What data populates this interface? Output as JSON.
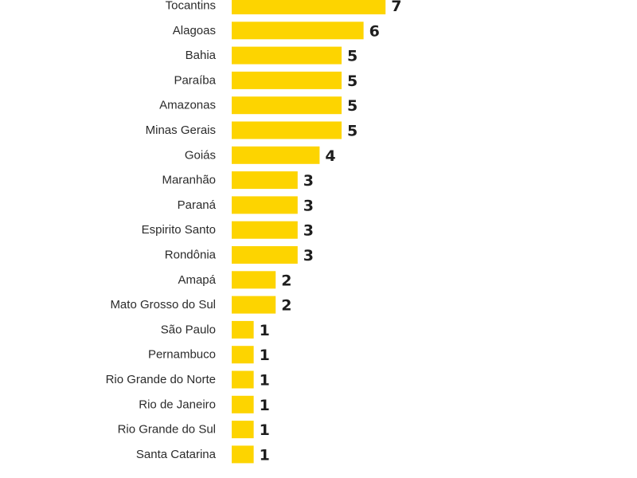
{
  "colors": {
    "bar": "#FDD400",
    "label": "#2b2b2b",
    "value": "#1e1e1e",
    "background": "#ffffff"
  },
  "chart_data": {
    "type": "bar",
    "orientation": "horizontal",
    "categories": [
      "Tocantins",
      "Alagoas",
      "Bahia",
      "Paraíba",
      "Amazonas",
      "Minas Gerais",
      "Goiás",
      "Maranhão",
      "Paraná",
      "Espirito Santo",
      "Rondônia",
      "Amapá",
      "Mato Grosso do Sul",
      "São Paulo",
      "Pernambuco",
      "Rio Grande do Norte",
      "Rio de Janeiro",
      "Rio Grande do Sul",
      "Santa Catarina"
    ],
    "values": [
      7,
      6,
      5,
      5,
      5,
      5,
      4,
      3,
      3,
      3,
      3,
      2,
      2,
      1,
      1,
      1,
      1,
      1,
      1
    ],
    "title": "",
    "xlabel": "",
    "ylabel": "",
    "grid": false,
    "legend": "none"
  }
}
